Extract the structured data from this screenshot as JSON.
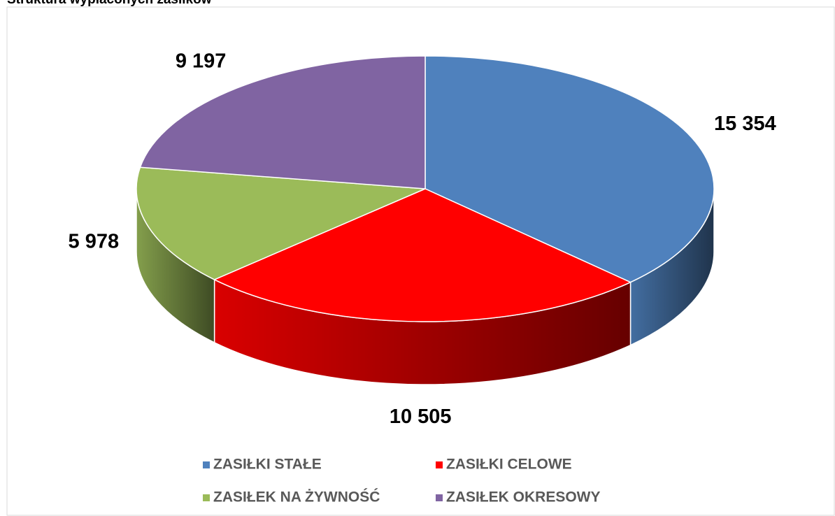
{
  "chart_data": {
    "type": "pie",
    "title": "Struktura wypłaconych zasiłków",
    "categories": [
      "ZASIŁKI STAŁE",
      "ZASIŁKI CELOWE",
      "ZASIŁEK NA ŻYWNOŚĆ",
      "ZASIŁEK OKRESOWY"
    ],
    "values": [
      15354,
      10505,
      5978,
      9197
    ],
    "value_labels": [
      "15 354",
      "10 505",
      "5 978",
      "9 197"
    ],
    "colors": [
      "#4f81bd",
      "#ff0000",
      "#9bbb59",
      "#8064a2"
    ],
    "legend": "bottom"
  }
}
